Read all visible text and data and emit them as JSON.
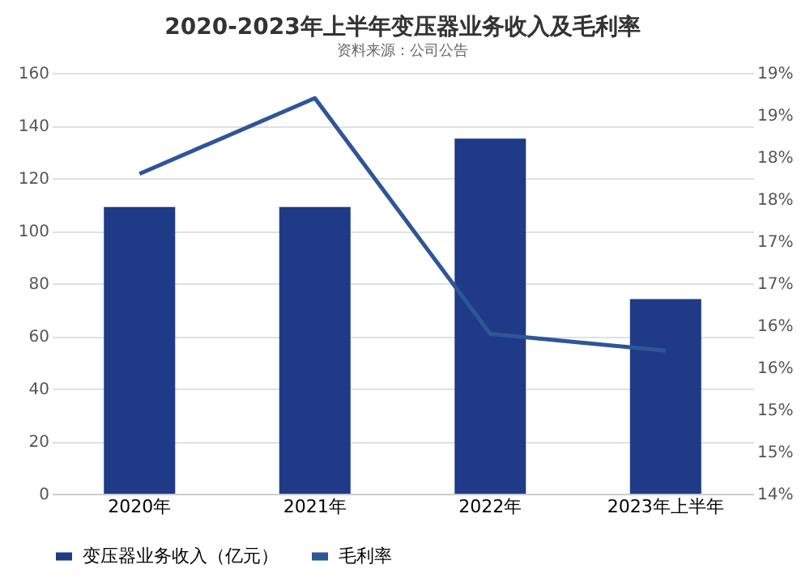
{
  "chart_data": {
    "type": "bar",
    "title": "2020-2023年上半年变压器业务收入及毛利率",
    "categories": [
      "2020年",
      "2021年",
      "2022年",
      "2023年上半年"
    ],
    "series": [
      {
        "name": "变压器业务收入（亿元）",
        "color": "#1f3a87",
        "values": [
          109,
          109,
          135,
          74
        ]
      },
      {
        "name": "毛利率",
        "type": "line",
        "axis": "y2",
        "color": "#2e5597",
        "values": [
          17.8,
          18.7,
          15.9,
          15.7
        ]
      }
    ],
    "ylim": [
      0,
      160
    ],
    "yticks": [
      0,
      20,
      40,
      60,
      80,
      100,
      120,
      140,
      160
    ],
    "y2lim": [
      14,
      19
    ],
    "y2ticks": [
      {
        "value": 14,
        "label": "14%"
      },
      {
        "value": 14.5,
        "label": "15%"
      },
      {
        "value": 15,
        "label": "15%"
      },
      {
        "value": 15.5,
        "label": "16%"
      },
      {
        "value": 16,
        "label": "16%"
      },
      {
        "value": 16.5,
        "label": "17%"
      },
      {
        "value": 17,
        "label": "17%"
      },
      {
        "value": 17.5,
        "label": "18%"
      },
      {
        "value": 18,
        "label": "18%"
      },
      {
        "value": 18.5,
        "label": "19%"
      },
      {
        "value": 19,
        "label": "19%"
      }
    ],
    "grid": "y",
    "legend": "bottom",
    "marker": "none",
    "annotations": [
      "资料来源：公司公告"
    ]
  }
}
